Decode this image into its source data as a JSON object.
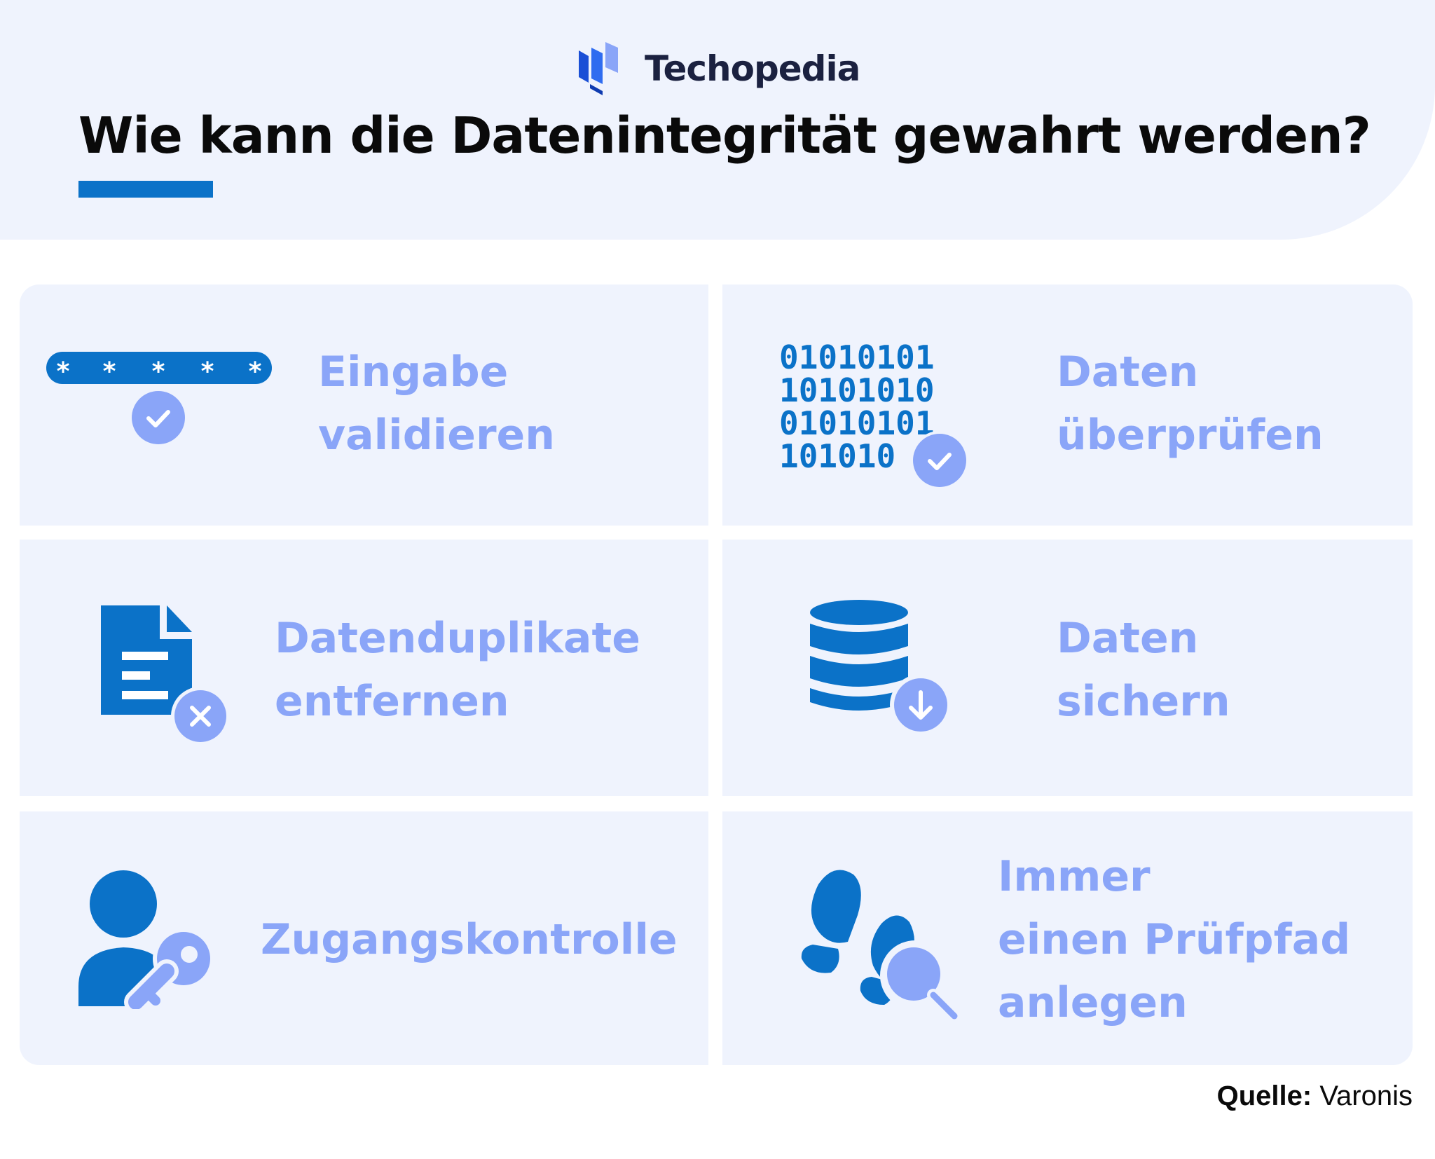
{
  "brand": {
    "name": "Techopedia",
    "logo_icon": "techopedia-logo-icon"
  },
  "title": "Wie kann die Datenintegrität gewahrt werden?",
  "colors": {
    "accent": "#0b72c8",
    "light_accent": "#8aa5f8",
    "card_bg": "#eff3fd",
    "title": "#0a0a0a"
  },
  "items": [
    {
      "label": "Eingabe\nvalidieren",
      "icon": "password-check-icon"
    },
    {
      "label": "Daten\nüberprüfen",
      "icon": "binary-check-icon",
      "binary_lines": [
        "01010101",
        "10101010",
        "01010101",
        "101010"
      ]
    },
    {
      "label": "Datenduplikate\nentfernen",
      "icon": "document-remove-icon"
    },
    {
      "label": "Daten\nsichern",
      "icon": "database-download-icon"
    },
    {
      "label": "Zugangskontrolle",
      "icon": "user-key-icon"
    },
    {
      "label": "Immer\neinen Prüfpfad\nanlegen",
      "icon": "footprints-search-icon"
    }
  ],
  "source": {
    "label": "Quelle:",
    "value": "Varonis"
  }
}
